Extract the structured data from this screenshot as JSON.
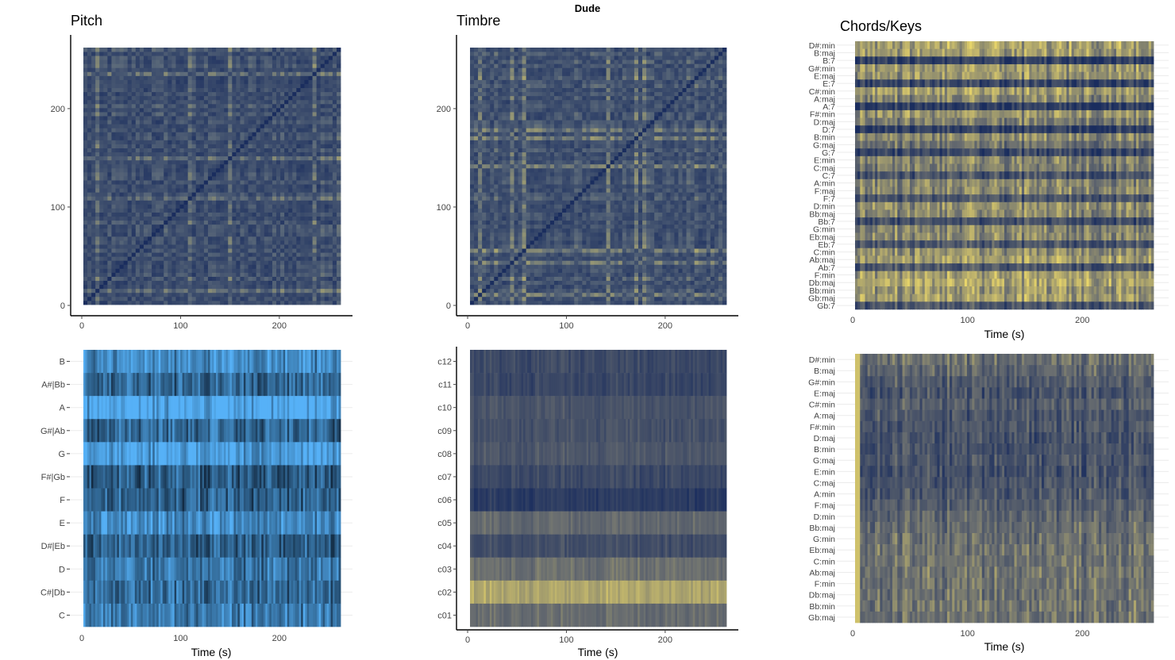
{
  "figure": {
    "title": "Dude"
  },
  "chart_data": [
    {
      "id": "pitch_ssm",
      "type": "heatmap",
      "title": "Pitch",
      "xlabel": "",
      "ylabel": "",
      "x_ticks": [
        0,
        100,
        200
      ],
      "y_ticks": [
        0,
        100,
        200
      ],
      "xlim": [
        0,
        262
      ],
      "ylim": [
        0,
        262
      ],
      "colors": {
        "low": "#1a2d5e",
        "mid": "#5c6a7a",
        "high": "#e8d56a"
      },
      "mean_intensity": 0.25,
      "diagonal": true
    },
    {
      "id": "timbre_ssm",
      "type": "heatmap",
      "title": "Timbre",
      "xlabel": "",
      "ylabel": "",
      "x_ticks": [
        0,
        100,
        200
      ],
      "y_ticks": [
        0,
        100,
        200
      ],
      "xlim": [
        0,
        262
      ],
      "ylim": [
        0,
        262
      ],
      "colors": {
        "low": "#1a2d5e",
        "mid": "#5c6a7a",
        "high": "#e8d56a"
      },
      "mean_intensity": 0.3,
      "diagonal": true
    },
    {
      "id": "chords_gram",
      "type": "heatmap",
      "title": "Chords/Keys",
      "xlabel": "Time (s)",
      "ylabel": "",
      "x_ticks": [
        0,
        100,
        200
      ],
      "xlim": [
        0,
        262
      ],
      "categories": [
        "D#:min",
        "B:maj",
        "B:7",
        "G#:min",
        "E:maj",
        "E:7",
        "C#:min",
        "A:maj",
        "A:7",
        "F#:min",
        "D:maj",
        "D:7",
        "B:min",
        "G:maj",
        "G:7",
        "E:min",
        "C:maj",
        "C:7",
        "A:min",
        "F:maj",
        "F:7",
        "D:min",
        "Bb:maj",
        "Bb:7",
        "G:min",
        "Eb:maj",
        "Eb:7",
        "C:min",
        "Ab:maj",
        "Ab:7",
        "F:min",
        "Db:maj",
        "Bb:min",
        "Gb:maj",
        "Gb:7"
      ],
      "row_levels": [
        0.75,
        0.72,
        0.12,
        0.7,
        0.68,
        0.18,
        0.72,
        0.6,
        0.1,
        0.68,
        0.55,
        0.12,
        0.62,
        0.5,
        0.2,
        0.6,
        0.55,
        0.28,
        0.6,
        0.62,
        0.3,
        0.65,
        0.62,
        0.25,
        0.6,
        0.62,
        0.3,
        0.65,
        0.72,
        0.3,
        0.72,
        0.78,
        0.68,
        0.72,
        0.3
      ],
      "colors": {
        "low": "#1a2d5e",
        "mid": "#6b6f70",
        "high": "#e8d56a"
      }
    },
    {
      "id": "chromagram",
      "type": "heatmap",
      "title": "",
      "xlabel": "Time (s)",
      "ylabel": "",
      "x_ticks": [
        0,
        100,
        200
      ],
      "xlim": [
        0,
        262
      ],
      "categories": [
        "B",
        "A#|Bb",
        "A",
        "G#|Ab",
        "G",
        "F#|Gb",
        "F",
        "E",
        "D#|Eb",
        "D",
        "C#|Db",
        "C"
      ],
      "row_levels": [
        0.7,
        0.45,
        0.95,
        0.45,
        0.85,
        0.35,
        0.4,
        0.7,
        0.4,
        0.55,
        0.45,
        0.6
      ],
      "colors": {
        "low": "#132b43",
        "high": "#56b1f7"
      }
    },
    {
      "id": "cepstrogram",
      "type": "heatmap",
      "title": "",
      "xlabel": "Time (s)",
      "ylabel": "",
      "x_ticks": [
        0,
        100,
        200
      ],
      "xlim": [
        0,
        262
      ],
      "categories": [
        "c12",
        "c11",
        "c10",
        "c09",
        "c08",
        "c07",
        "c06",
        "c05",
        "c04",
        "c03",
        "c02",
        "c01"
      ],
      "row_levels": [
        0.22,
        0.2,
        0.3,
        0.28,
        0.32,
        0.22,
        0.12,
        0.45,
        0.25,
        0.5,
        0.78,
        0.48
      ],
      "colors": {
        "low": "#1a2d5e",
        "mid": "#6b6f70",
        "high": "#e8d56a"
      }
    },
    {
      "id": "keygram",
      "type": "heatmap",
      "title": "",
      "xlabel": "Time (s)",
      "ylabel": "",
      "x_ticks": [
        0,
        100,
        200
      ],
      "xlim": [
        0,
        262
      ],
      "categories": [
        "D#:min",
        "B:maj",
        "G#:min",
        "E:maj",
        "C#:min",
        "A:maj",
        "F#:min",
        "D:maj",
        "B:min",
        "G:maj",
        "E:min",
        "C:maj",
        "A:min",
        "F:maj",
        "D:min",
        "Bb:maj",
        "G:min",
        "Eb:maj",
        "C:min",
        "Ab:maj",
        "F:min",
        "Db:maj",
        "Bb:min",
        "Gb:maj"
      ],
      "row_levels": [
        0.5,
        0.42,
        0.35,
        0.3,
        0.38,
        0.3,
        0.32,
        0.28,
        0.3,
        0.3,
        0.28,
        0.3,
        0.32,
        0.38,
        0.42,
        0.45,
        0.48,
        0.5,
        0.5,
        0.52,
        0.5,
        0.5,
        0.52,
        0.5
      ],
      "colors": {
        "low": "#1a2d5e",
        "mid": "#6b6f70",
        "high": "#e8d56a"
      }
    }
  ]
}
